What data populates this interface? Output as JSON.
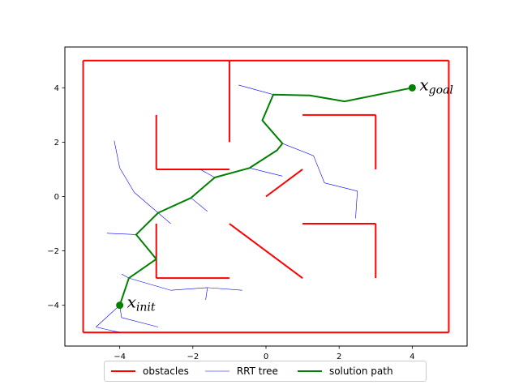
{
  "chart_data": {
    "type": "line",
    "title": "",
    "xlabel": "",
    "ylabel": "",
    "xlim": [
      -5.5,
      5.5
    ],
    "ylim": [
      -5.5,
      5.5
    ],
    "xticks": [
      -4,
      -2,
      0,
      2,
      4
    ],
    "yticks": [
      -4,
      -2,
      0,
      2,
      4
    ],
    "xtick_labels": [
      "−4",
      "−2",
      "0",
      "2",
      "4"
    ],
    "ytick_labels": [
      "−4",
      "−2",
      "0",
      "2",
      "4"
    ],
    "grid": false,
    "legend_position": "bottom-center outside",
    "colors": {
      "obstacles": "#ff0000",
      "tree": "#0000ff",
      "path": "#008000"
    },
    "series": [
      {
        "name": "obstacles",
        "segments": [
          [
            [
              -5,
              -5
            ],
            [
              5,
              -5
            ]
          ],
          [
            [
              5,
              -5
            ],
            [
              5,
              5
            ]
          ],
          [
            [
              5,
              5
            ],
            [
              -5,
              5
            ]
          ],
          [
            [
              -5,
              5
            ],
            [
              -5,
              -5
            ]
          ],
          [
            [
              -1,
              5
            ],
            [
              -1,
              2
            ]
          ],
          [
            [
              -3,
              3
            ],
            [
              -3,
              1
            ]
          ],
          [
            [
              -3,
              1
            ],
            [
              -1,
              1
            ]
          ],
          [
            [
              1,
              3
            ],
            [
              3,
              3
            ]
          ],
          [
            [
              3,
              3
            ],
            [
              3,
              1
            ]
          ],
          [
            [
              0,
              0
            ],
            [
              1,
              1
            ]
          ],
          [
            [
              1,
              -1
            ],
            [
              3,
              -1
            ]
          ],
          [
            [
              3,
              -1
            ],
            [
              3,
              -3
            ]
          ],
          [
            [
              -1,
              -1
            ],
            [
              1,
              -3
            ]
          ],
          [
            [
              -3,
              -1
            ],
            [
              -3,
              -3
            ]
          ],
          [
            [
              -3,
              -3
            ],
            [
              -1,
              -3
            ]
          ]
        ]
      },
      {
        "name": "RRT tree",
        "segments": [
          [
            [
              -4,
              -4
            ],
            [
              -4.65,
              -4.8
            ]
          ],
          [
            [
              -4.65,
              -4.8
            ],
            [
              -4.0,
              -5.0
            ]
          ],
          [
            [
              -4,
              -4
            ],
            [
              -3.95,
              -4.45
            ]
          ],
          [
            [
              -3.95,
              -4.45
            ],
            [
              -2.95,
              -4.8
            ]
          ],
          [
            [
              -4.0,
              -4.0
            ],
            [
              -3.75,
              -3.0
            ]
          ],
          [
            [
              -3.75,
              -3.0
            ],
            [
              -3.95,
              -2.85
            ]
          ],
          [
            [
              -3.75,
              -3.0
            ],
            [
              -2.6,
              -3.45
            ]
          ],
          [
            [
              -2.6,
              -3.45
            ],
            [
              -1.6,
              -3.35
            ]
          ],
          [
            [
              -1.6,
              -3.35
            ],
            [
              -0.65,
              -3.45
            ]
          ],
          [
            [
              -1.6,
              -3.35
            ],
            [
              -1.65,
              -3.8
            ]
          ],
          [
            [
              -3.55,
              -1.4
            ],
            [
              -4.35,
              -1.35
            ]
          ],
          [
            [
              -2.95,
              -0.6
            ],
            [
              -3.6,
              0.15
            ]
          ],
          [
            [
              -3.6,
              0.15
            ],
            [
              -4.0,
              1.05
            ]
          ],
          [
            [
              -4.0,
              1.05
            ],
            [
              -4.15,
              2.05
            ]
          ],
          [
            [
              -2.95,
              -0.6
            ],
            [
              -2.6,
              -1.0
            ]
          ],
          [
            [
              -2.05,
              -0.05
            ],
            [
              -1.6,
              -0.55
            ]
          ],
          [
            [
              -1.4,
              0.7
            ],
            [
              -1.8,
              1.0
            ]
          ],
          [
            [
              -0.45,
              1.05
            ],
            [
              0.45,
              0.75
            ]
          ],
          [
            [
              0.45,
              1.95
            ],
            [
              1.3,
              1.5
            ]
          ],
          [
            [
              1.3,
              1.5
            ],
            [
              1.6,
              0.5
            ]
          ],
          [
            [
              1.6,
              0.5
            ],
            [
              2.5,
              0.2
            ]
          ],
          [
            [
              2.5,
              0.2
            ],
            [
              2.45,
              -0.8
            ]
          ],
          [
            [
              0.2,
              3.75
            ],
            [
              -0.75,
              4.1
            ]
          ]
        ]
      },
      {
        "name": "solution path",
        "points": [
          [
            -4.0,
            -4.0
          ],
          [
            -3.75,
            -3.0
          ],
          [
            -3.0,
            -2.3
          ],
          [
            -3.55,
            -1.4
          ],
          [
            -2.95,
            -0.6
          ],
          [
            -2.05,
            -0.05
          ],
          [
            -1.4,
            0.7
          ],
          [
            -0.45,
            1.05
          ],
          [
            0.3,
            1.7
          ],
          [
            0.45,
            1.95
          ],
          [
            -0.1,
            2.8
          ],
          [
            0.2,
            3.75
          ],
          [
            1.2,
            3.72
          ],
          [
            2.15,
            3.5
          ],
          [
            4.0,
            4.0
          ]
        ]
      }
    ],
    "annotations": [
      {
        "label_base": "x",
        "label_sub": "init",
        "x": -4,
        "y": -4
      },
      {
        "label_base": "x",
        "label_sub": "goal",
        "x": 4,
        "y": 4
      }
    ]
  },
  "legend": {
    "obstacles": "obstacles",
    "tree": "RRT tree",
    "path": "solution path"
  }
}
